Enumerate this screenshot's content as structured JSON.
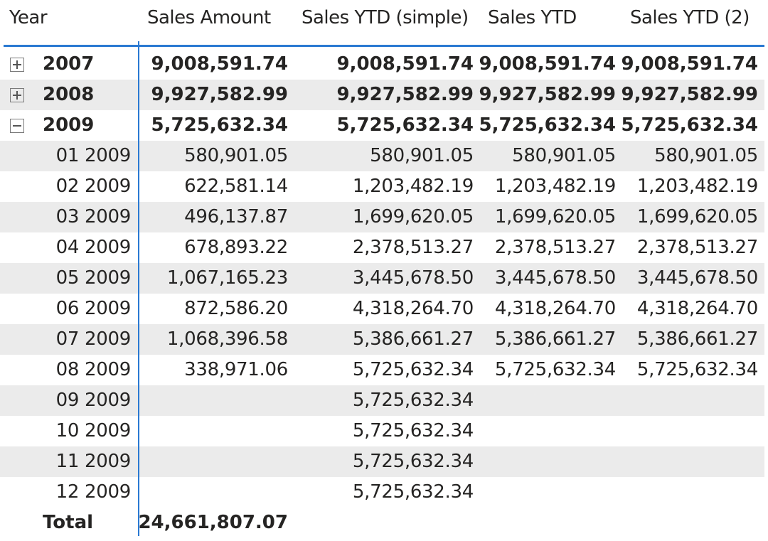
{
  "headers": {
    "year": "Year",
    "sales_amount": "Sales Amount",
    "sales_ytd_simple": "Sales YTD (simple)",
    "sales_ytd": "Sales YTD",
    "sales_ytd_2": "Sales YTD (2)"
  },
  "years": [
    {
      "label": "2007",
      "expander": "plus-icon",
      "sales_amount": "9,008,591.74",
      "ytd_simple": "9,008,591.74",
      "ytd": "9,008,591.74",
      "ytd2": "9,008,591.74"
    },
    {
      "label": "2008",
      "expander": "plus-icon",
      "sales_amount": "9,927,582.99",
      "ytd_simple": "9,927,582.99",
      "ytd": "9,927,582.99",
      "ytd2": "9,927,582.99"
    },
    {
      "label": "2009",
      "expander": "minus-icon",
      "sales_amount": "5,725,632.34",
      "ytd_simple": "5,725,632.34",
      "ytd": "5,725,632.34",
      "ytd2": "5,725,632.34"
    }
  ],
  "months": [
    {
      "label": "01 2009",
      "sales_amount": "580,901.05",
      "ytd_simple": "580,901.05",
      "ytd": "580,901.05",
      "ytd2": "580,901.05"
    },
    {
      "label": "02 2009",
      "sales_amount": "622,581.14",
      "ytd_simple": "1,203,482.19",
      "ytd": "1,203,482.19",
      "ytd2": "1,203,482.19"
    },
    {
      "label": "03 2009",
      "sales_amount": "496,137.87",
      "ytd_simple": "1,699,620.05",
      "ytd": "1,699,620.05",
      "ytd2": "1,699,620.05"
    },
    {
      "label": "04 2009",
      "sales_amount": "678,893.22",
      "ytd_simple": "2,378,513.27",
      "ytd": "2,378,513.27",
      "ytd2": "2,378,513.27"
    },
    {
      "label": "05 2009",
      "sales_amount": "1,067,165.23",
      "ytd_simple": "3,445,678.50",
      "ytd": "3,445,678.50",
      "ytd2": "3,445,678.50"
    },
    {
      "label": "06 2009",
      "sales_amount": "872,586.20",
      "ytd_simple": "4,318,264.70",
      "ytd": "4,318,264.70",
      "ytd2": "4,318,264.70"
    },
    {
      "label": "07 2009",
      "sales_amount": "1,068,396.58",
      "ytd_simple": "5,386,661.27",
      "ytd": "5,386,661.27",
      "ytd2": "5,386,661.27"
    },
    {
      "label": "08 2009",
      "sales_amount": "338,971.06",
      "ytd_simple": "5,725,632.34",
      "ytd": "5,725,632.34",
      "ytd2": "5,725,632.34"
    },
    {
      "label": "09 2009",
      "sales_amount": "",
      "ytd_simple": "5,725,632.34",
      "ytd": "",
      "ytd2": ""
    },
    {
      "label": "10 2009",
      "sales_amount": "",
      "ytd_simple": "5,725,632.34",
      "ytd": "",
      "ytd2": ""
    },
    {
      "label": "11 2009",
      "sales_amount": "",
      "ytd_simple": "5,725,632.34",
      "ytd": "",
      "ytd2": ""
    },
    {
      "label": "12 2009",
      "sales_amount": "",
      "ytd_simple": "5,725,632.34",
      "ytd": "",
      "ytd2": ""
    }
  ],
  "total": {
    "label": "Total",
    "sales_amount": "24,661,807.07",
    "ytd_simple": "",
    "ytd": "",
    "ytd2": ""
  },
  "colors": {
    "accent": "#2a79d2",
    "row_shade": "#ebebeb"
  }
}
